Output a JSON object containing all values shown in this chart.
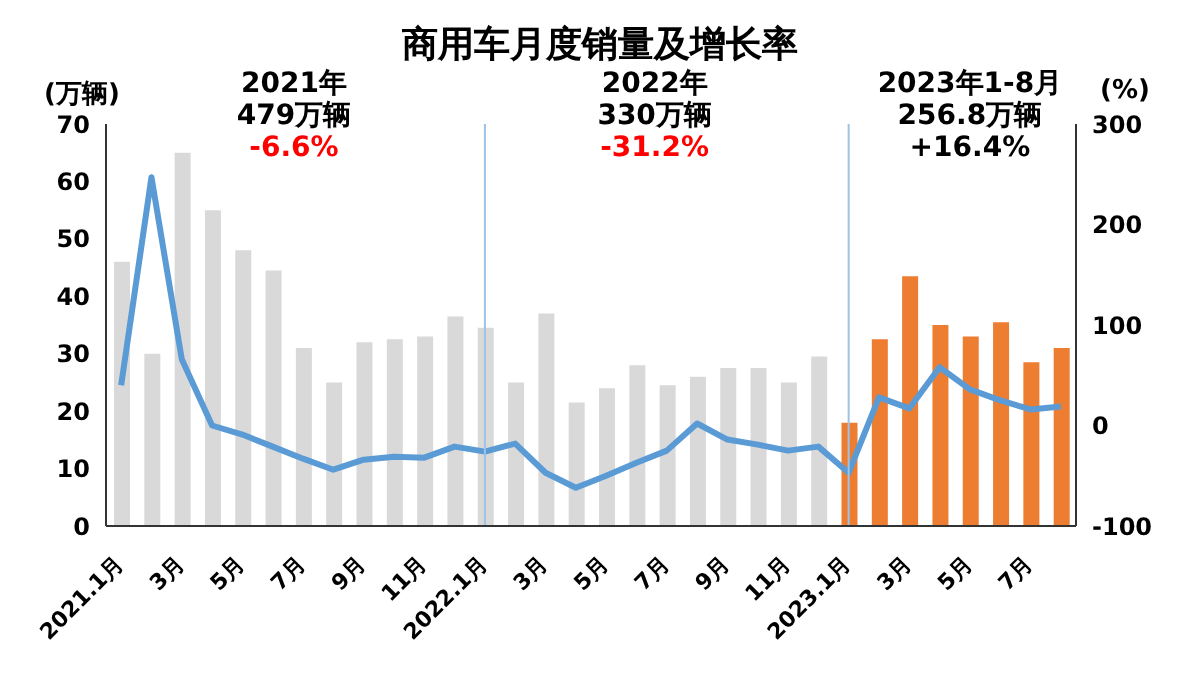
{
  "chart_data": {
    "type": "bar",
    "title": "商用车月度销量及增长率",
    "ylabel": "(万辆)",
    "y2label": "(%)",
    "categories": [
      "2021.1月",
      null,
      "3月",
      null,
      "5月",
      null,
      "7月",
      null,
      "9月",
      null,
      "11月",
      null,
      "2022.1月",
      null,
      "3月",
      null,
      "5月",
      null,
      "7月",
      null,
      "9月",
      null,
      "11月",
      null,
      "2023.1月",
      null,
      "3月",
      null,
      "5月",
      null,
      "7月",
      null
    ],
    "series": [
      {
        "colors": [
          "#d9d9d9",
          "#d9d9d9",
          "#d9d9d9",
          "#d9d9d9",
          "#d9d9d9",
          "#d9d9d9",
          "#d9d9d9",
          "#d9d9d9",
          "#d9d9d9",
          "#d9d9d9",
          "#d9d9d9",
          "#d9d9d9",
          "#d9d9d9",
          "#d9d9d9",
          "#d9d9d9",
          "#d9d9d9",
          "#d9d9d9",
          "#d9d9d9",
          "#d9d9d9",
          "#d9d9d9",
          "#d9d9d9",
          "#d9d9d9",
          "#d9d9d9",
          "#d9d9d9",
          "#ed7d31",
          "#ed7d31",
          "#ed7d31",
          "#ed7d31",
          "#ed7d31",
          "#ed7d31",
          "#ed7d31",
          "#ed7d31"
        ],
        "values": [
          46,
          30,
          65,
          55,
          48,
          44.5,
          31,
          25,
          32,
          32.5,
          33,
          36.5,
          34.5,
          25,
          37,
          21.5,
          24,
          28,
          24.5,
          26,
          27.5,
          27.5,
          25,
          29.5,
          18,
          32.5,
          43.5,
          35,
          33,
          35.5,
          28.5,
          31
        ]
      },
      {
        "type": "line",
        "axis": "y2",
        "color": "#5b9bd5",
        "values": [
          40,
          247,
          66,
          0,
          -9,
          -21,
          -33,
          -44,
          -34,
          -31,
          -32,
          -21,
          -26,
          -18,
          -47,
          -62,
          -50,
          -37,
          -25,
          2,
          -14,
          -19,
          -25,
          -21,
          -47,
          28,
          17,
          58,
          36,
          25,
          16,
          19
        ]
      }
    ],
    "ylim": [
      0,
      70
    ],
    "yticks": [
      0,
      10,
      20,
      30,
      40,
      50,
      60,
      70
    ],
    "y2lim": [
      -100,
      300
    ],
    "y2ticks": [
      -100,
      0,
      100,
      200,
      300
    ],
    "ref_lines": [
      {
        "axis": "x",
        "value": "2022.1月",
        "color": "#9dc3e6"
      },
      {
        "axis": "x",
        "value": "2023.1月",
        "color": "#9dc3e6"
      }
    ],
    "annotations": [
      "2021年",
      "479万辆",
      "-6.6%",
      "2022年",
      "330万辆",
      "-31.2%",
      "2023年1-8月",
      "256.8万辆",
      "+16.4%"
    ],
    "grid": false,
    "legend": false,
    "marker": "none"
  }
}
